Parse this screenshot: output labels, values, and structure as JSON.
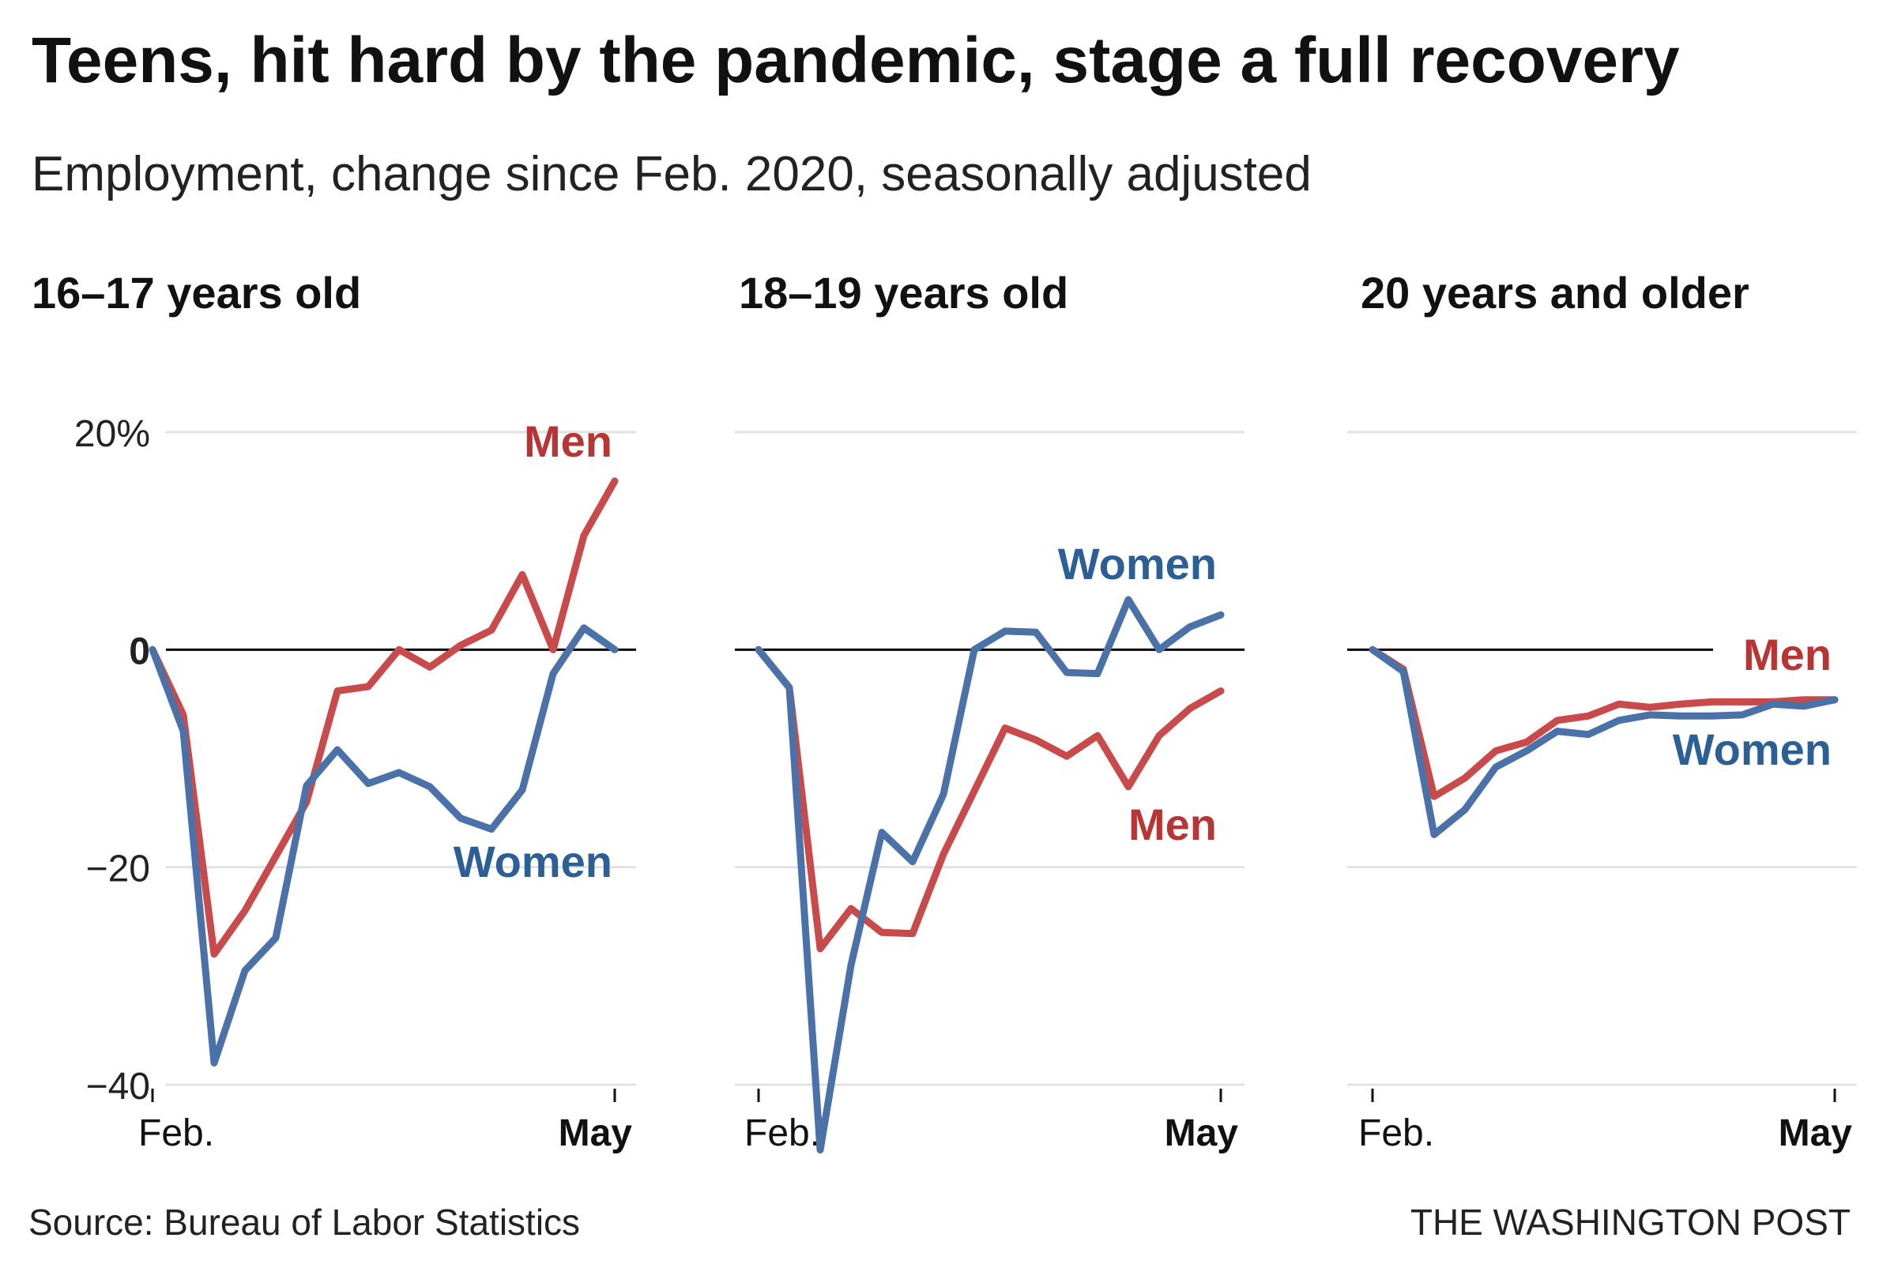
{
  "title": "Teens, hit hard by the pandemic, stage a full recovery",
  "subtitle": "Employment, change since Feb. 2020, seasonally adjusted",
  "source": "Source: Bureau of Labor Statistics",
  "credit": "THE WASHINGTON POST",
  "colors": {
    "men": "#c94a4a",
    "women": "#4a72a8",
    "men_label": "#b83535",
    "women_label": "#2c5f96",
    "grid": "#e2e2e2",
    "zero": "#000000"
  },
  "chart_data": [
    {
      "type": "line",
      "title": "16–17 years old",
      "xticks": [
        "Feb.",
        "May"
      ],
      "yticks": [
        "20%",
        "0",
        "−20",
        "−40"
      ],
      "ylim": [
        -40,
        20
      ],
      "x": [
        0,
        1,
        2,
        3,
        4,
        5,
        6,
        7,
        8,
        9,
        10,
        11,
        12,
        13,
        14,
        15
      ],
      "series": [
        {
          "name": "Men",
          "values": [
            0,
            -6,
            -28,
            -24,
            -19,
            -14,
            -3.8,
            -3.4,
            0,
            -1.6,
            0.4,
            1.8,
            6.9,
            0,
            10.5,
            15.5
          ]
        },
        {
          "name": "Women",
          "values": [
            0,
            -7.5,
            -38,
            -29.5,
            -26.5,
            -12.5,
            -9.2,
            -12.3,
            -11.3,
            -12.6,
            -15.5,
            -16.5,
            -12.9,
            -2.2,
            2,
            0
          ]
        }
      ]
    },
    {
      "type": "line",
      "title": "18–19 years old",
      "xticks": [
        "Feb.",
        "May"
      ],
      "yticks": [
        "20%",
        "0",
        "−20",
        "−40"
      ],
      "ylim": [
        -40,
        20
      ],
      "x": [
        0,
        1,
        2,
        3,
        4,
        5,
        6,
        7,
        8,
        9,
        10,
        11,
        12,
        13,
        14,
        15
      ],
      "series": [
        {
          "name": "Men",
          "values": [
            0,
            -3.5,
            -27.5,
            -23.8,
            -26,
            -26.1,
            -18.8,
            -13,
            -7.2,
            -8.3,
            -9.8,
            -7.9,
            -12.6,
            -7.9,
            -5.4,
            -3.8
          ]
        },
        {
          "name": "Women",
          "values": [
            0,
            -3.5,
            -46,
            -29,
            -16.8,
            -19.5,
            -13.3,
            0,
            1.7,
            1.6,
            -2.1,
            -2.2,
            4.6,
            0,
            2.1,
            3.2
          ]
        }
      ]
    },
    {
      "type": "line",
      "title": "20 years and older",
      "xticks": [
        "Feb.",
        "May"
      ],
      "yticks": [
        "20%",
        "0",
        "−20",
        "−40"
      ],
      "ylim": [
        -40,
        20
      ],
      "x": [
        0,
        1,
        2,
        3,
        4,
        5,
        6,
        7,
        8,
        9,
        10,
        11,
        12,
        13,
        14,
        15
      ],
      "series": [
        {
          "name": "Men",
          "values": [
            0,
            -1.8,
            -13.5,
            -11.8,
            -9.3,
            -8.5,
            -6.5,
            -6.1,
            -5,
            -5.3,
            -5,
            -4.8,
            -4.8,
            -4.8,
            -4.6,
            -4.6
          ]
        },
        {
          "name": "Women",
          "values": [
            0,
            -2,
            -17,
            -14.7,
            -10.8,
            -9.3,
            -7.5,
            -7.8,
            -6.5,
            -6,
            -6.1,
            -6.1,
            -6,
            -5,
            -5.2,
            -4.6
          ]
        }
      ]
    }
  ]
}
